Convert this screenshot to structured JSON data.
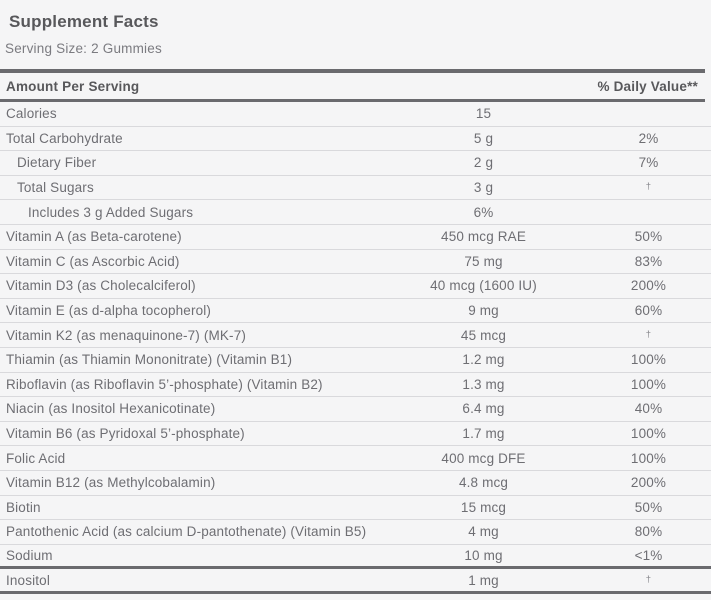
{
  "label": {
    "title": "Supplement Facts",
    "serving_size": "Serving Size: 2 Gummies",
    "columns": {
      "amount_header": "Amount Per Serving",
      "daily_value_header": "% Daily Value**"
    },
    "rows": [
      {
        "name": "Calories",
        "amount": "15",
        "dv": "",
        "indent": 0
      },
      {
        "name": "Total Carbohydrate",
        "amount": "5 g",
        "dv": "2%",
        "indent": 0
      },
      {
        "name": "Dietary Fiber",
        "amount": "2 g",
        "dv": "7%",
        "indent": 1
      },
      {
        "name": "Total Sugars",
        "amount": "3 g",
        "dv": "†",
        "indent": 1
      },
      {
        "name": "Includes 3 g Added Sugars",
        "amount": "6%",
        "dv": "",
        "indent": 2
      },
      {
        "name": "Vitamin A (as Beta-carotene)",
        "amount": "450 mcg RAE",
        "dv": "50%",
        "indent": 0
      },
      {
        "name": "Vitamin C (as Ascorbic Acid)",
        "amount": "75 mg",
        "dv": "83%",
        "indent": 0
      },
      {
        "name": "Vitamin D3 (as Cholecalciferol)",
        "amount": "40 mcg (1600 IU)",
        "dv": "200%",
        "indent": 0
      },
      {
        "name": "Vitamin E (as d-alpha tocopherol)",
        "amount": "9 mg",
        "dv": "60%",
        "indent": 0
      },
      {
        "name": "Vitamin K2 (as menaquinone-7) (MK-7)",
        "amount": "45 mcg",
        "dv": "†",
        "indent": 0
      },
      {
        "name": "Thiamin (as Thiamin Mononitrate) (Vitamin B1)",
        "amount": "1.2 mg",
        "dv": "100%",
        "indent": 0
      },
      {
        "name": "Riboflavin (as Riboflavin 5’-phosphate) (Vitamin B2)",
        "amount": "1.3 mg",
        "dv": "100%",
        "indent": 0
      },
      {
        "name": "Niacin (as Inositol Hexanicotinate)",
        "amount": "6.4 mg",
        "dv": "40%",
        "indent": 0
      },
      {
        "name": "Vitamin B6 (as Pyridoxal 5’-phosphate)",
        "amount": "1.7 mg",
        "dv": "100%",
        "indent": 0
      },
      {
        "name": "Folic Acid",
        "amount": "400 mcg DFE",
        "dv": "100%",
        "indent": 0
      },
      {
        "name": "Vitamin B12 (as Methylcobalamin)",
        "amount": "4.8 mcg",
        "dv": "200%",
        "indent": 0
      },
      {
        "name": "Biotin",
        "amount": "15 mcg",
        "dv": "50%",
        "indent": 0
      },
      {
        "name": "Pantothenic Acid (as calcium D-pantothenate) (Vitamin B5)",
        "amount": "4 mg",
        "dv": "80%",
        "indent": 0
      },
      {
        "name": "Sodium",
        "amount": "10 mg",
        "dv": "<1%",
        "indent": 0,
        "thick_border": true
      },
      {
        "name": "Inositol",
        "amount": "1 mg",
        "dv": "†",
        "indent": 0,
        "thick_border": true
      }
    ],
    "colors": {
      "background": "#f5f5f6",
      "text": "#6e6e73",
      "bold_text": "#58585b",
      "bar": "#6a6a6e",
      "separator": "#d9d9dc"
    }
  }
}
